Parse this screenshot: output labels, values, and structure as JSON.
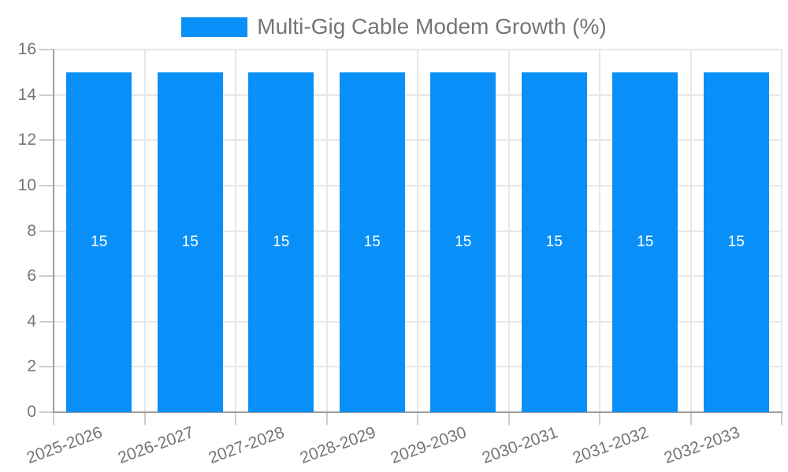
{
  "chart_data": {
    "type": "bar",
    "title": "Multi-Gig Cable Modem Growth (%)",
    "legend": {
      "position": "top",
      "label": "Multi-Gig Cable Modem Growth (%)"
    },
    "categories": [
      "2025-2026",
      "2026-2027",
      "2027-2028",
      "2028-2029",
      "2029-2030",
      "2030-2031",
      "2031-2032",
      "2032-2033"
    ],
    "series": [
      {
        "name": "Multi-Gig Cable Modem Growth (%)",
        "values": [
          15,
          15,
          15,
          15,
          15,
          15,
          15,
          15
        ]
      }
    ],
    "bar_value_labels": [
      "15",
      "15",
      "15",
      "15",
      "15",
      "15",
      "15",
      "15"
    ],
    "xlabel": "",
    "ylabel": "",
    "ylim": [
      0,
      16
    ],
    "yticks": [
      0,
      2,
      4,
      6,
      8,
      10,
      12,
      14,
      16
    ],
    "x_label_rotation_deg": -20,
    "grid": true,
    "legend_position": "top",
    "colors": {
      "bar": "#0990f8",
      "grid": "#e7e7e7",
      "axis": "#9e9e9e",
      "tick_mark": "#cdcdcd",
      "label_text": "#757575",
      "value_label_text": "#ffffff",
      "background": "#ffffff"
    }
  }
}
